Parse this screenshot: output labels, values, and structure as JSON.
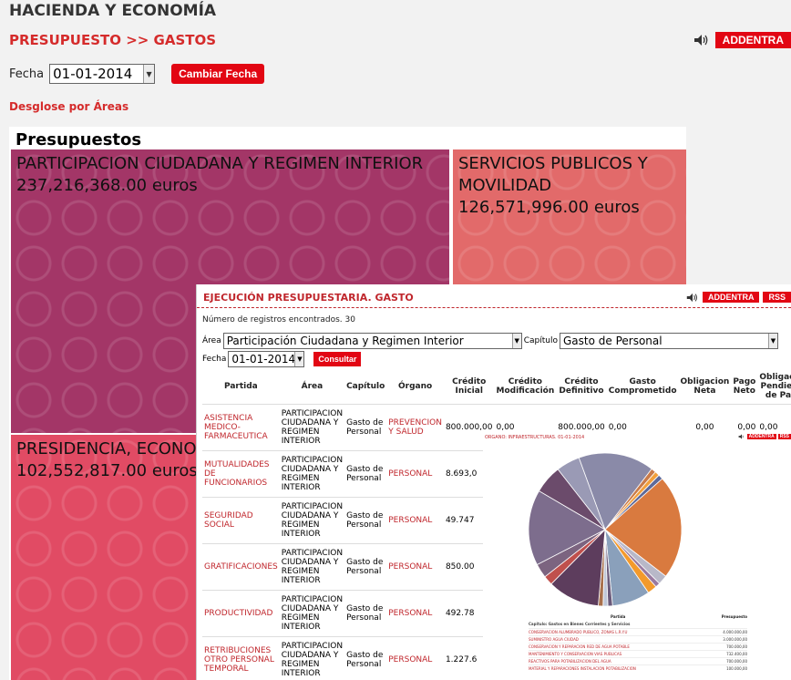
{
  "header": {
    "app_title": "HACIENDA Y ECONOMÍA",
    "section_title": "PRESUPUESTO >> GASTOS",
    "addentra": "ADDENTRA"
  },
  "date_filter": {
    "label": "Fecha",
    "value": "01-01-2014",
    "button": "Cambiar Fecha"
  },
  "desglose": "Desglose por Áreas",
  "treemap": {
    "title": "Presupuestos",
    "tiles": [
      {
        "name": "PARTICIPACION CIUDADANA Y REGIMEN INTERIOR",
        "amount": "237,216,368.00 euros",
        "color": "#a33667"
      },
      {
        "name": "SERVICIOS PUBLICOS Y MOVILIDAD",
        "amount": "126,571,996.00 euros",
        "color": "#e26a6a"
      },
      {
        "name": "PRESIDENCIA, ECONOMIA Y HACIENDA",
        "amount": "102,552,817.00 euros",
        "color": "#e14b64"
      }
    ]
  },
  "popup": {
    "title": "EJECUCIÓN PRESUPUESTARIA. GASTO",
    "addentra": "ADDENTRA",
    "rss": "RSS",
    "registros": "Número de registros encontrados. 30",
    "area_label": "Área",
    "area_value": "Participación Ciudadana y Regimen Interior",
    "capitulo_label": "Capítulo",
    "capitulo_value": "Gasto de Personal",
    "fecha_label": "Fecha",
    "fecha_value": "01-01-2014",
    "consultar": "Consultar",
    "columns": [
      "Partida",
      "Área",
      "Capítulo",
      "Órgano",
      "Crédito Inicial",
      "Crédito Modificación",
      "Crédito Definitivo",
      "Gasto Comprometido",
      "Obligacion Neta",
      "Pago Neto",
      "Obligación Pendiente de Pago"
    ],
    "rows": [
      {
        "partida": "ASISTENCIA MEDICO-FARMACEUTICA",
        "area": "PARTICIPACION CIUDADANA Y REGIMEN INTERIOR",
        "capitulo": "Gasto de Personal",
        "organo": "PREVENCION Y SALUD",
        "inicial": "800.000,00",
        "modificacion": "0,00",
        "definitivo": "800.000,00",
        "comprometido": "0,00",
        "obligacion": "0,00",
        "pago": "0,00",
        "pendiente": "0,00"
      },
      {
        "partida": "MUTUALIDADES DE FUNCIONARIOS",
        "area": "PARTICIPACION CIUDADANA Y REGIMEN INTERIOR",
        "capitulo": "Gasto de Personal",
        "organo": "PERSONAL",
        "inicial": "8.693,0"
      },
      {
        "partida": "SEGURIDAD SOCIAL",
        "area": "PARTICIPACION CIUDADANA Y REGIMEN INTERIOR",
        "capitulo": "Gasto de Personal",
        "organo": "PERSONAL",
        "inicial": "49.747"
      },
      {
        "partida": "GRATIFICACIONES",
        "area": "PARTICIPACION CIUDADANA Y REGIMEN INTERIOR",
        "capitulo": "Gasto de Personal",
        "organo": "PERSONAL",
        "inicial": "850.00"
      },
      {
        "partida": "PRODUCTIVIDAD",
        "area": "PARTICIPACION CIUDADANA Y REGIMEN INTERIOR",
        "capitulo": "Gasto de Personal",
        "organo": "PERSONAL",
        "inicial": "492.78"
      },
      {
        "partida": "RETRIBUCIONES OTRO PERSONAL TEMPORAL",
        "area": "PARTICIPACION CIUDADANA Y REGIMEN INTERIOR",
        "capitulo": "Gasto de Personal",
        "organo": "PERSONAL",
        "inicial": "1.227.6"
      }
    ]
  },
  "overlay": {
    "title": "ORGANO: INFRAESTRUCTURAS. 01-01-2014",
    "addentra": "ADDENTRA",
    "rss": "RSS",
    "pie_slices": [
      {
        "value": 16,
        "color": "#8a8aa8"
      },
      {
        "value": 1,
        "color": "#c97b4a"
      },
      {
        "value": 1,
        "color": "#f2a03c"
      },
      {
        "value": 1,
        "color": "#5e6a9a"
      },
      {
        "value": 22,
        "color": "#d97a3f"
      },
      {
        "value": 2,
        "color": "#b8b8c8"
      },
      {
        "value": 1,
        "color": "#9a7aa0"
      },
      {
        "value": 2,
        "color": "#f39a2c"
      },
      {
        "value": 8,
        "color": "#8aa0bb"
      },
      {
        "value": 1,
        "color": "#6a5a7a"
      },
      {
        "value": 1,
        "color": "#c0c8d8"
      },
      {
        "value": 1,
        "color": "#a8704c"
      },
      {
        "value": 11,
        "color": "#5d3d5d"
      },
      {
        "value": 2,
        "color": "#c0504d"
      },
      {
        "value": 3,
        "color": "#7c6480"
      },
      {
        "value": 16,
        "color": "#7d6d8d"
      },
      {
        "value": 6,
        "color": "#6b4b6b"
      },
      {
        "value": 5,
        "color": "#9a9ab5"
      }
    ],
    "table_header": [
      "Partida",
      "Presupuesto"
    ],
    "caption": "Capitulo: Gastos en Bienes Corrientes y Servicios",
    "rows": [
      {
        "name": "CONSERVACION ALUMBRADO PUBLICO, ZONAS L.R.Y.U",
        "value": "4.000.000,00"
      },
      {
        "name": "SUMINISTRO AGUA CIUDAD",
        "value": "3.000.000,00"
      },
      {
        "name": "CONSERVACION Y REPARACION RED DE AGUA POTABLE",
        "value": "700.000,00"
      },
      {
        "name": "MANTENIMIENTO Y CONSERVACION VIAS PUBLICAS",
        "value": "732.400,00"
      },
      {
        "name": "REACTIVOS PARA POTABILIZACION DEL AGUA",
        "value": "700.000,00"
      },
      {
        "name": "MATERIAL Y REPARACIONES INSTALACION POTABILIZACION",
        "value": "100.000,00"
      }
    ]
  }
}
